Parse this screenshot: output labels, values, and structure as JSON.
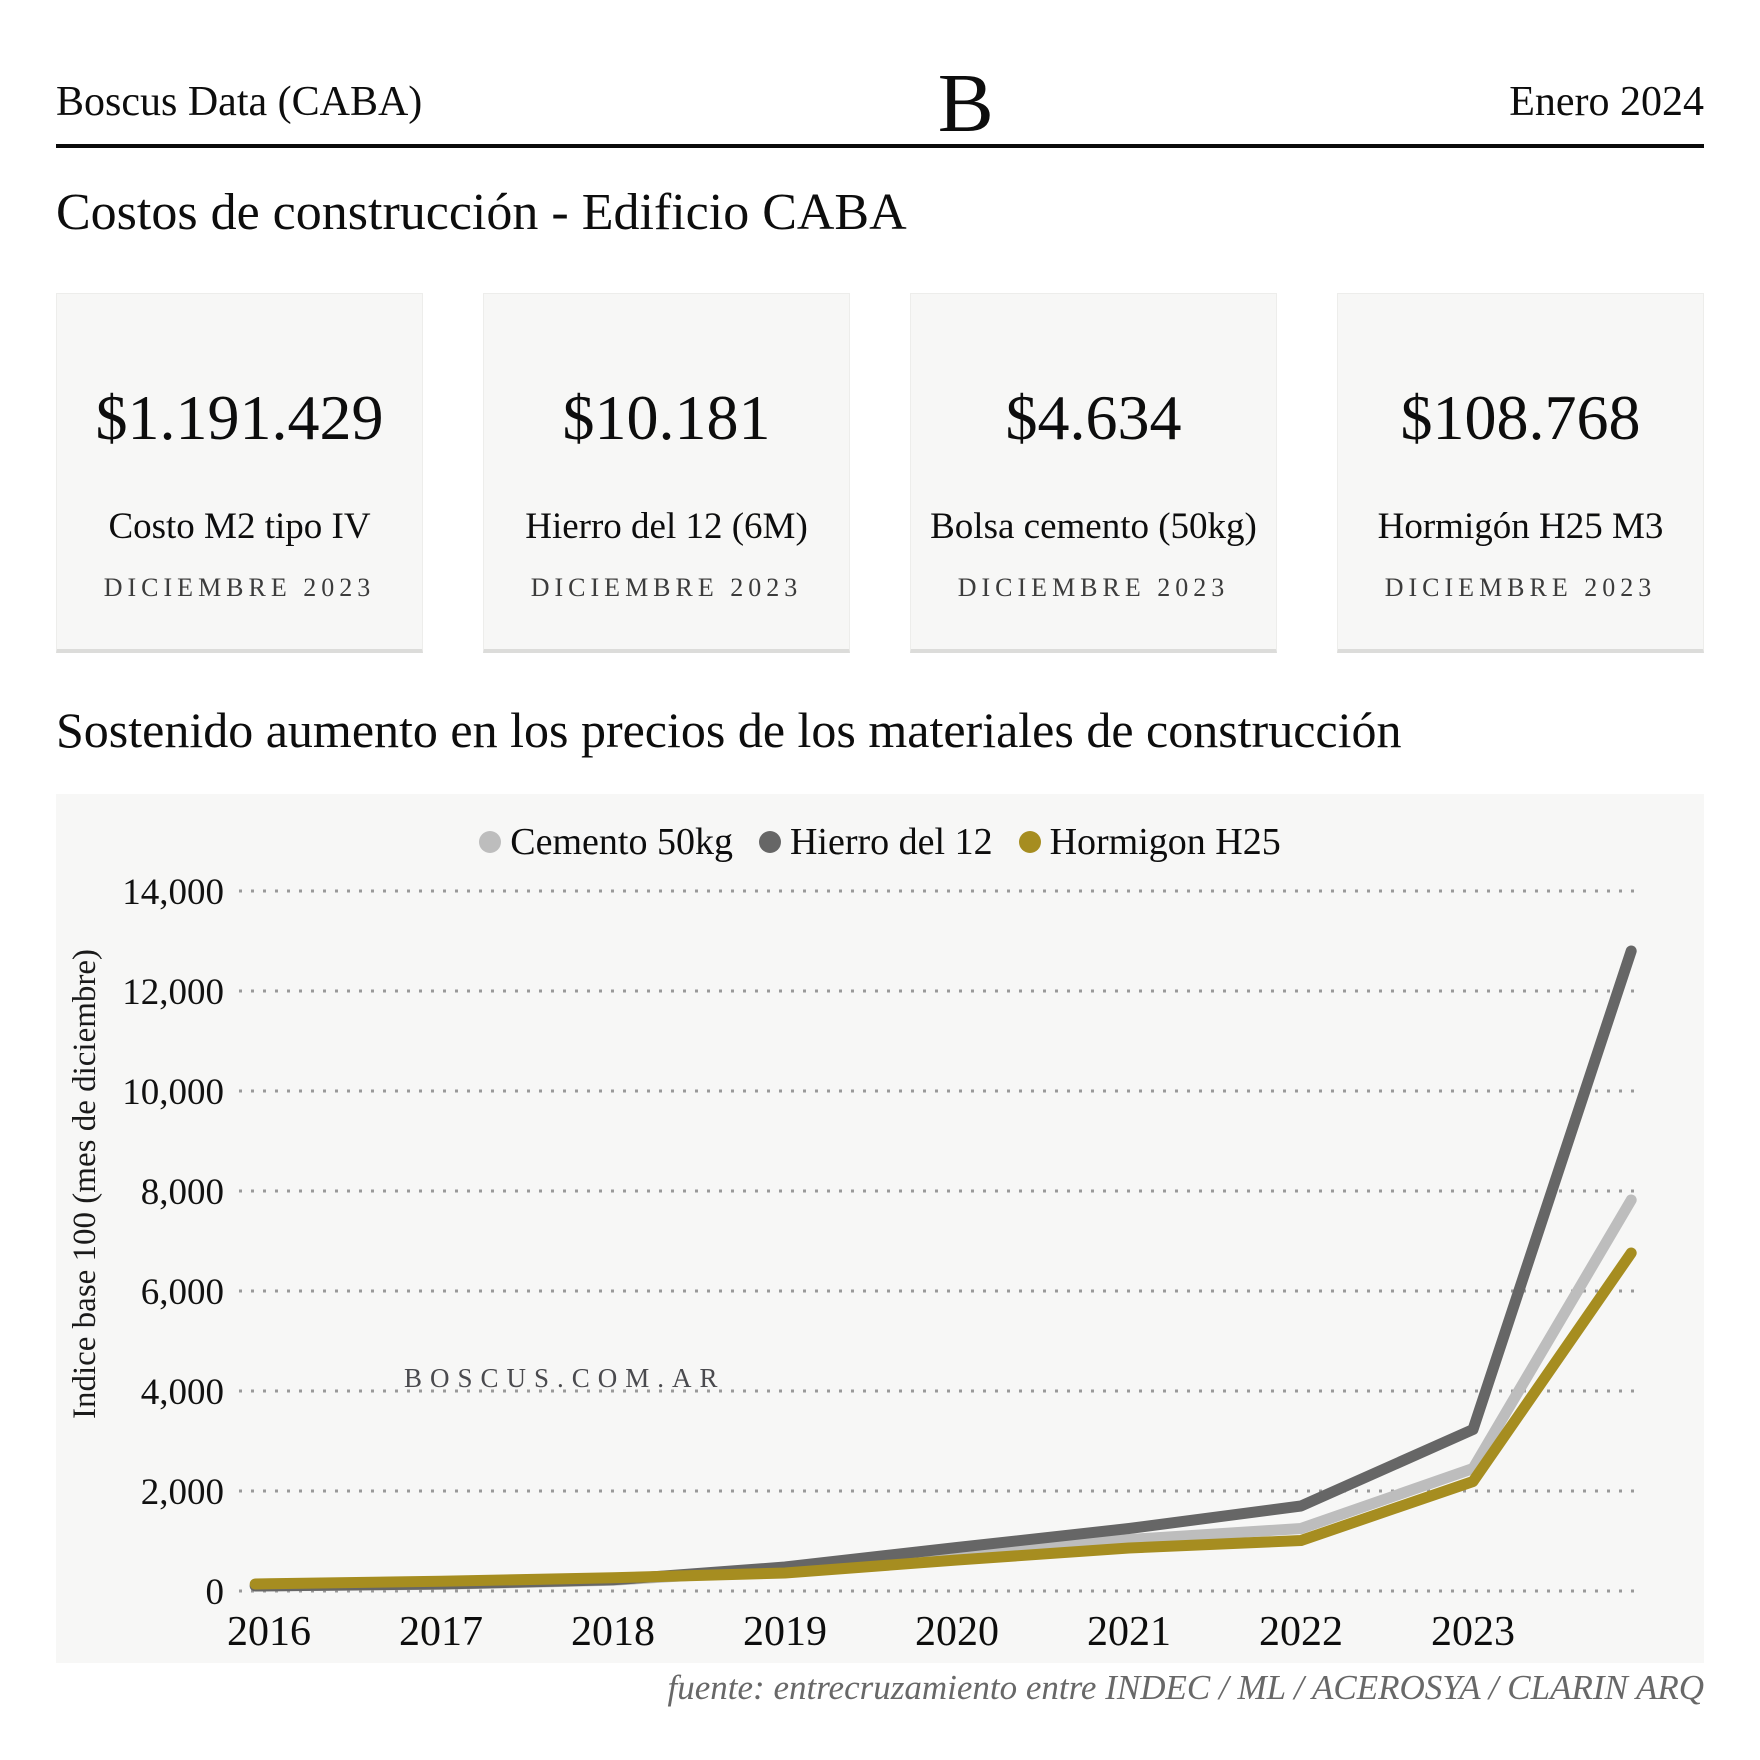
{
  "header": {
    "brand": "Boscus Data (CABA)",
    "logo": "B",
    "date": "Enero 2024"
  },
  "section_costs": {
    "title": "Costos de construcción - Edificio CABA"
  },
  "cards": [
    {
      "value": "$1.191.429",
      "label": "Costo M2 tipo IV",
      "period": "DICIEMBRE 2023"
    },
    {
      "value": "$10.181",
      "label": "Hierro del 12 (6M)",
      "period": "DICIEMBRE 2023"
    },
    {
      "value": "$4.634",
      "label": "Bolsa cemento (50kg)",
      "period": "DICIEMBRE 2023"
    },
    {
      "value": "$108.768",
      "label": "Hormigón H25 M3",
      "period": "DICIEMBRE 2023"
    }
  ],
  "section_chart": {
    "title": "Sostenido aumento en los precios de los materiales de construcción"
  },
  "chart_data": {
    "type": "line",
    "title": "Sostenido aumento en los precios de los materiales de construcción",
    "ylabel": "Indice base 100 (mes de diciembre)",
    "xlabel": "",
    "ylim": [
      0,
      14000
    ],
    "y_ticks": [
      0,
      2000,
      4000,
      6000,
      8000,
      10000,
      12000,
      14000
    ],
    "x_tick_labels": [
      "2016",
      "2017",
      "2018",
      "2019",
      "2020",
      "2021",
      "2022",
      "2023"
    ],
    "x": [
      2015.92,
      2016,
      2017,
      2018,
      2019,
      2020,
      2021,
      2022,
      2023,
      2023.92
    ],
    "series": [
      {
        "name": "Cemento 50kg",
        "color": "#bdbdbd",
        "values": [
          100,
          102,
          135,
          215,
          430,
          720,
          1030,
          1250,
          2450,
          7820
        ]
      },
      {
        "name": "Hierro del 12",
        "color": "#666666",
        "values": [
          100,
          102,
          140,
          225,
          480,
          870,
          1250,
          1700,
          3230,
          12800
        ]
      },
      {
        "name": "Hormigon H25",
        "color": "#a68d20",
        "values": [
          140,
          145,
          195,
          265,
          360,
          620,
          860,
          1010,
          2190,
          6760
        ]
      }
    ],
    "grid": "horizontal-dotted",
    "grid_color": "#999999",
    "legend_position": "top-center",
    "watermark": "BOSCUS.COM.AR",
    "background": "#f7f7f6"
  },
  "footer": {
    "source": "fuente: entrecruzamiento entre INDEC / ML / ACEROSYA / CLARIN ARQ"
  }
}
